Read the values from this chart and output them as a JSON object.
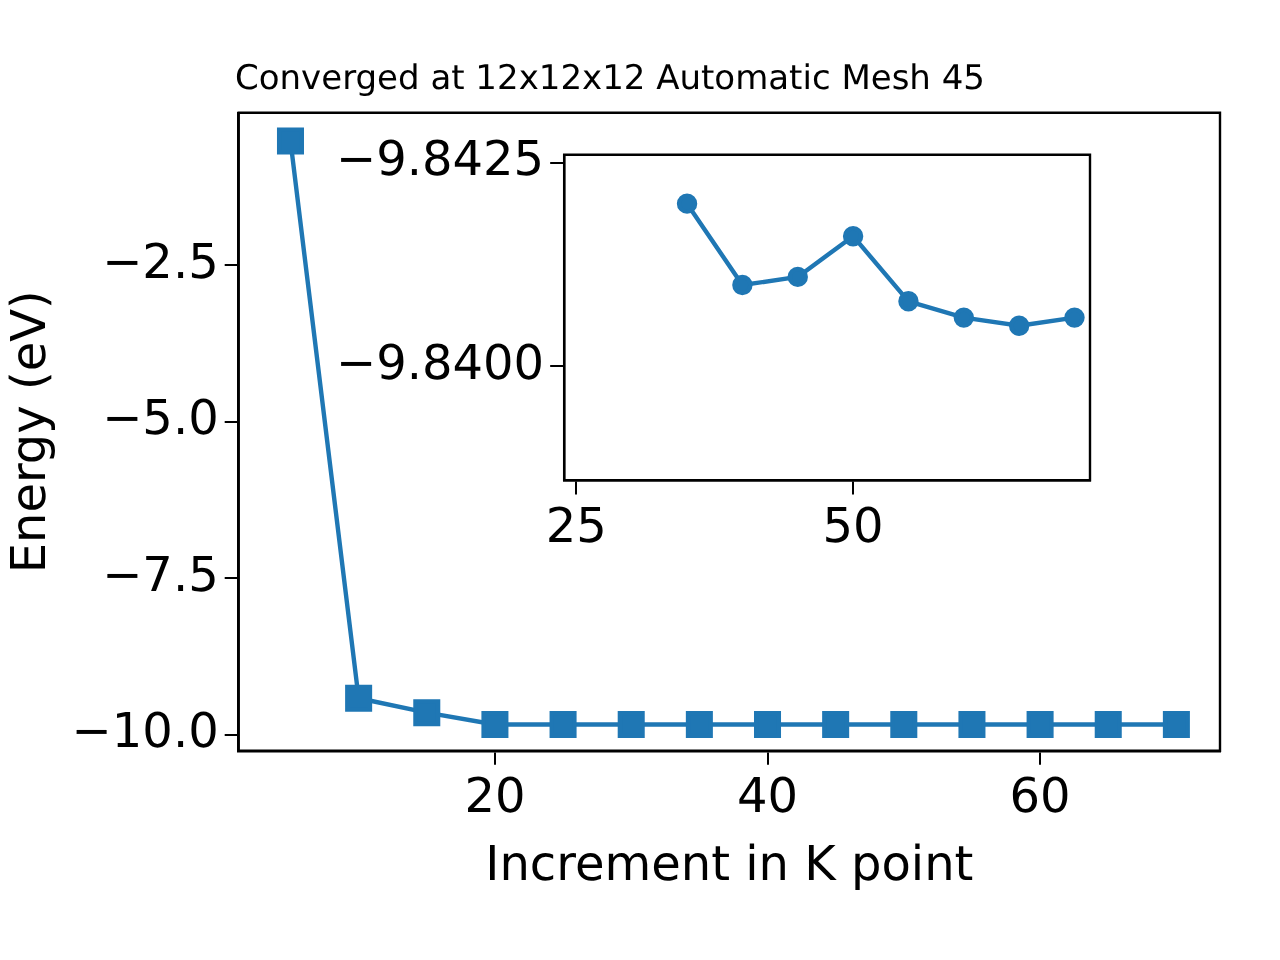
{
  "chart_data": [
    {
      "type": "line",
      "title": "Converged at 12x12x12 Automatic Mesh 45",
      "xlabel": "Increment in K point",
      "ylabel": "Energy (eV)",
      "x": [
        5,
        10,
        15,
        20,
        25,
        30,
        35,
        40,
        45,
        50,
        55,
        60,
        65,
        70
      ],
      "series": [
        {
          "color": "#1f77b4",
          "values": [
            -0.51,
            -9.42,
            -9.65,
            -9.84,
            -9.84,
            -9.84,
            -9.84,
            -9.84,
            -9.84,
            -9.84,
            -9.84,
            -9.84,
            -9.84,
            -9.84
          ]
        }
      ],
      "marker": "square",
      "xlim": [
        1.2,
        73.2
      ],
      "ylim": [
        -10.26,
        -0.06
      ],
      "xticks": [
        20,
        40,
        60
      ],
      "yticks": [
        {
          "value": -10,
          "label": "−10.0"
        },
        {
          "value": -7.5,
          "label": "−7.5"
        },
        {
          "value": -5,
          "label": "−5.0"
        },
        {
          "value": -2.5,
          "label": "−2.5"
        }
      ]
    },
    {
      "type": "line",
      "x": [
        35,
        40,
        45,
        50,
        55,
        60,
        65,
        70
      ],
      "series": [
        {
          "color": "#1f77b4",
          "values": [
            -9.842,
            -9.841,
            -9.8411,
            -9.8416,
            -9.8408,
            -9.8406,
            -9.8405,
            -9.8406
          ]
        }
      ],
      "marker": "circle",
      "xlim": [
        23.9,
        71.4
      ],
      "ylim": [
        -9.8386,
        -9.8426
      ],
      "xticks": [
        25,
        50
      ],
      "yticks": [
        {
          "value": -9.8425,
          "label": "−9.8425"
        },
        {
          "value": -9.84,
          "label": "−9.8400"
        }
      ]
    }
  ]
}
